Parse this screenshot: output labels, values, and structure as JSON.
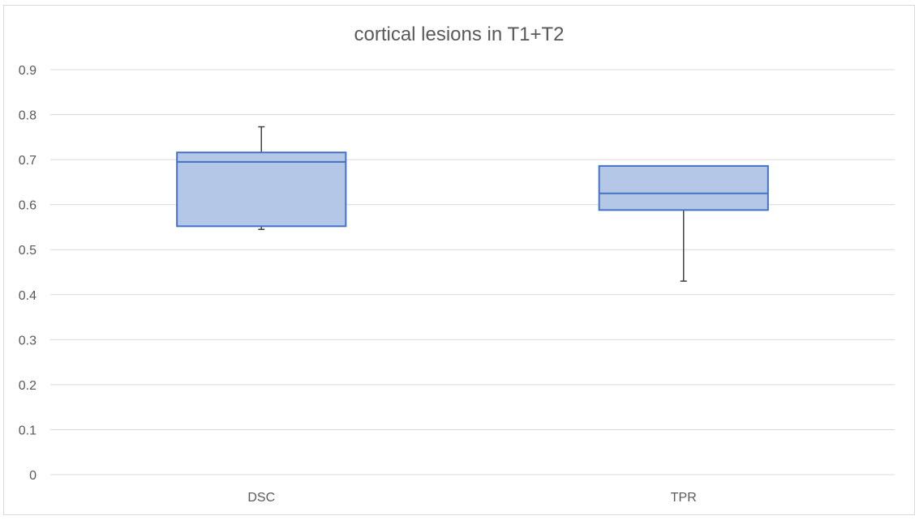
{
  "chart_data": {
    "type": "box",
    "title": "cortical lesions in T1+T2",
    "xlabel": "",
    "ylabel": "",
    "ylim": [
      0,
      0.9
    ],
    "yticks": [
      "0",
      "0.1",
      "0.2",
      "0.3",
      "0.4",
      "0.5",
      "0.6",
      "0.7",
      "0.8",
      "0.9"
    ],
    "grid": true,
    "categories": [
      "DSC",
      "TPR"
    ],
    "boxes": [
      {
        "category": "DSC",
        "min": 0.545,
        "q1": 0.552,
        "median": 0.695,
        "q3": 0.716,
        "max": 0.773
      },
      {
        "category": "TPR",
        "min": 0.43,
        "q1": 0.588,
        "median": 0.625,
        "q3": 0.686,
        "max": 0.686
      }
    ],
    "colors": {
      "box_fill": "#b4c7e7",
      "box_stroke": "#4472c4",
      "whisker": "#404040",
      "grid": "#d9d9d9",
      "text": "#595959"
    }
  }
}
